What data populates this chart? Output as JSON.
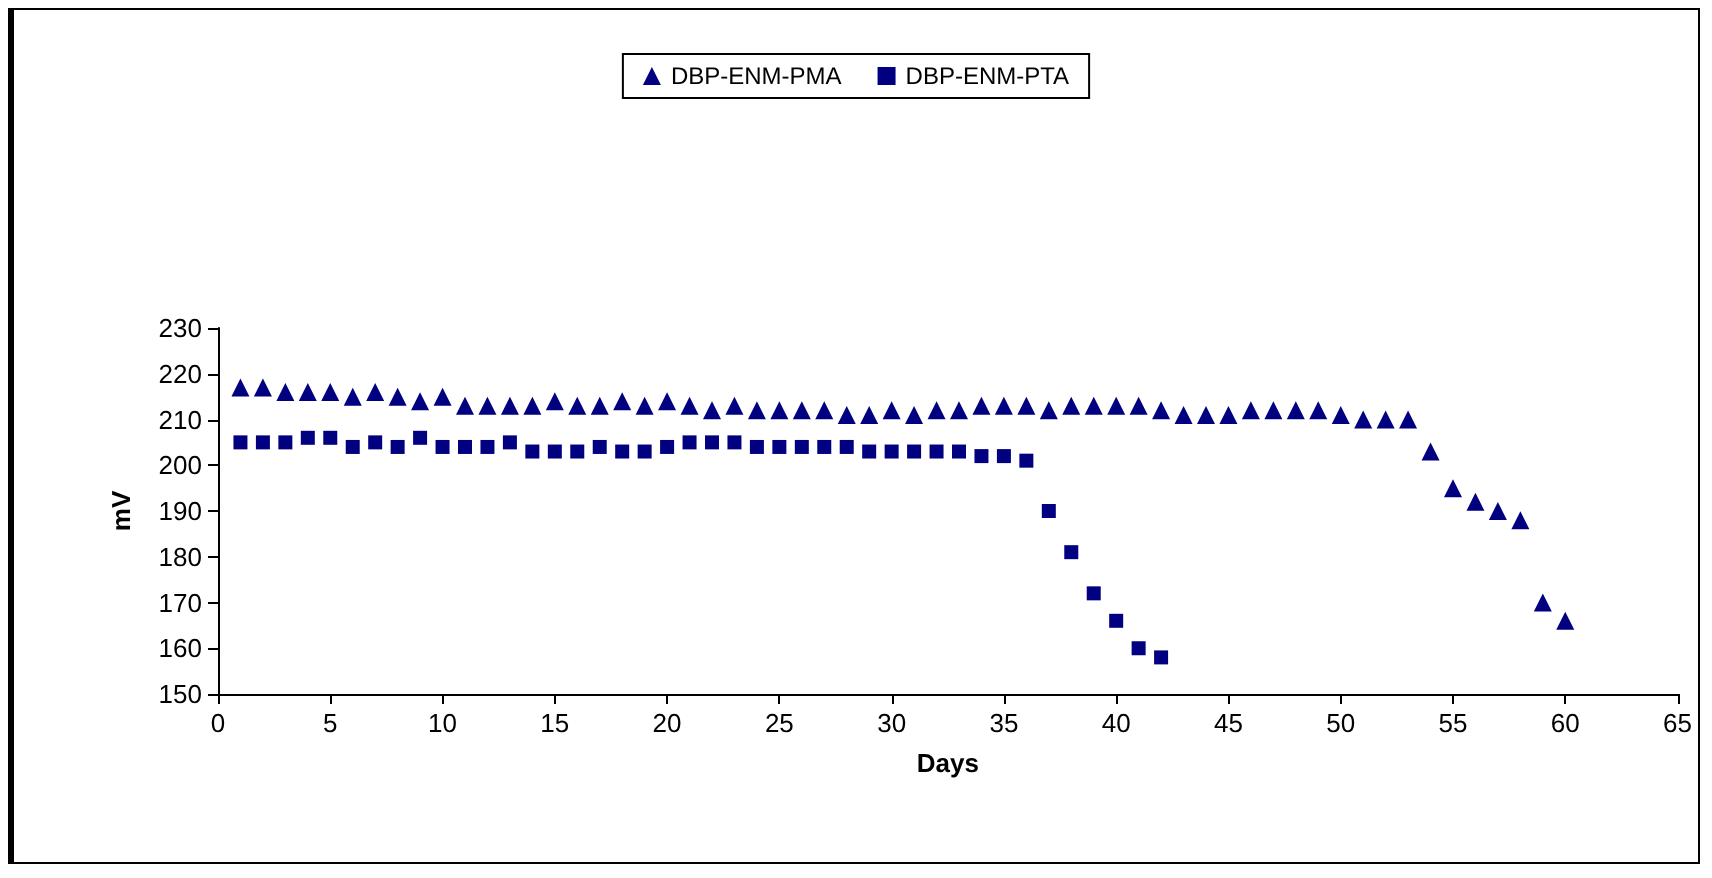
{
  "chart_data": {
    "type": "scatter",
    "xlabel": "Days",
    "ylabel": "mV",
    "xlim": [
      0,
      65
    ],
    "xticks": [
      0,
      5,
      10,
      15,
      20,
      25,
      30,
      35,
      40,
      45,
      50,
      55,
      60,
      65
    ],
    "ylim": [
      150,
      230
    ],
    "yticks": [
      150,
      160,
      170,
      180,
      190,
      200,
      210,
      220,
      230
    ],
    "grid": false,
    "legend": "top",
    "x": [
      1,
      2,
      3,
      4,
      5,
      6,
      7,
      8,
      9,
      10,
      11,
      12,
      13,
      14,
      15,
      16,
      17,
      18,
      19,
      20,
      21,
      22,
      23,
      24,
      25,
      26,
      27,
      28,
      29,
      30,
      31,
      32,
      33,
      34,
      35,
      36,
      37,
      38,
      39,
      40,
      41,
      42,
      43,
      44,
      45,
      46,
      47,
      48,
      49,
      50,
      51,
      52,
      53,
      54,
      55,
      56,
      57,
      58,
      59,
      60
    ],
    "series": [
      {
        "name": "DBP-ENM-PMA",
        "color": "#000080",
        "marker": "triangle",
        "values": [
          217,
          217,
          216,
          216,
          216,
          215,
          216,
          215,
          214,
          215,
          213,
          213,
          213,
          213,
          214,
          213,
          213,
          214,
          213,
          214,
          213,
          212,
          213,
          212,
          212,
          212,
          212,
          211,
          211,
          212,
          211,
          212,
          212,
          213,
          213,
          213,
          212,
          213,
          213,
          213,
          213,
          212,
          211,
          211,
          211,
          212,
          212,
          212,
          212,
          211,
          210,
          210,
          210,
          203,
          195,
          192,
          190,
          188,
          170,
          166
        ]
      },
      {
        "name": "DBP-ENM-PTA",
        "color": "#000080",
        "marker": "square",
        "values": [
          205,
          205,
          205,
          206,
          206,
          204,
          205,
          204,
          206,
          204,
          204,
          204,
          205,
          203,
          203,
          203,
          204,
          203,
          203,
          204,
          205,
          205,
          205,
          204,
          204,
          204,
          204,
          204,
          203,
          203,
          203,
          203,
          203,
          202,
          202,
          201,
          190,
          181,
          172,
          166,
          160,
          158,
          null,
          null,
          null,
          null,
          null,
          null,
          null,
          null,
          null,
          null,
          null,
          null,
          null,
          null,
          null,
          null,
          null,
          null
        ]
      }
    ]
  }
}
